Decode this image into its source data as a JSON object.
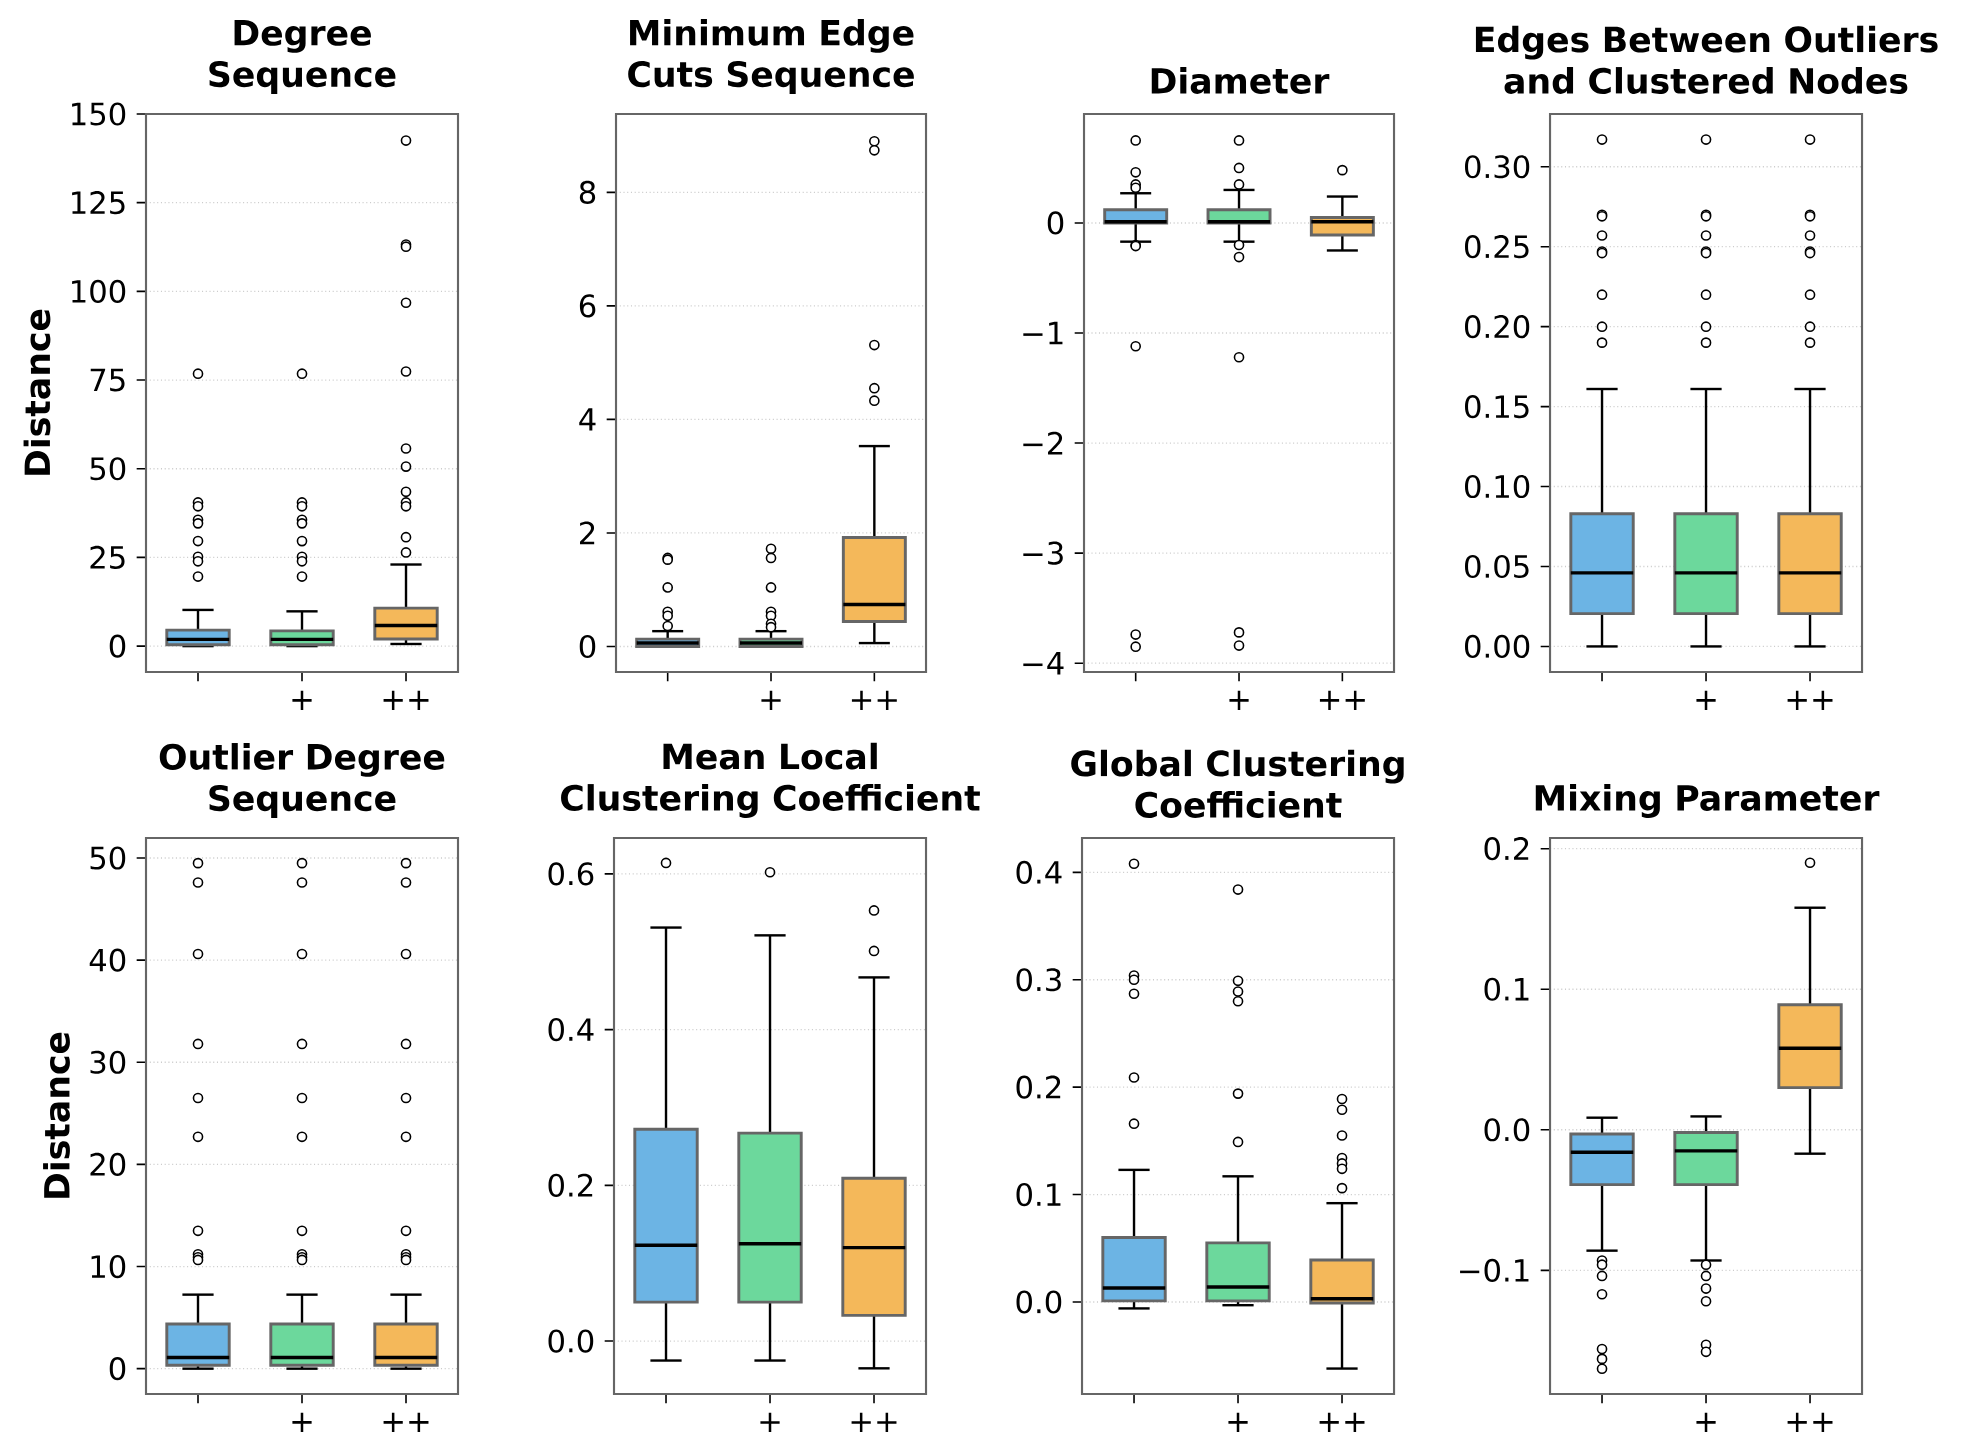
{
  "chart_data": [
    {
      "type": "box",
      "title": "Degree Sequence",
      "ylabel": "Distance",
      "categories": [
        null,
        "+",
        "++"
      ],
      "colors": [
        "#6cb4e4",
        "#6cd89c",
        "#f4b85a"
      ],
      "grid": "y",
      "ylim": [
        -7.3,
        150
      ],
      "yticks": [
        0,
        25,
        50,
        75,
        100,
        125,
        150
      ],
      "boxes": [
        {
          "low": 0,
          "q1": 0.4,
          "median": 1.9,
          "q3": 4.5,
          "high": 10.2,
          "outliers": [
            76.8,
            40.5,
            39.4,
            35.6,
            34.6,
            29.6,
            25.2,
            23.9,
            19.6
          ]
        },
        {
          "low": 0,
          "q1": 0.4,
          "median": 1.9,
          "q3": 4.3,
          "high": 9.8,
          "outliers": [
            76.8,
            40.5,
            39.4,
            35.6,
            34.6,
            29.6,
            25.2,
            23.9,
            19.6
          ]
        },
        {
          "low": 0.6,
          "q1": 2,
          "median": 5.8,
          "q3": 10.7,
          "high": 23,
          "outliers": [
            142.5,
            113.2,
            112.6,
            96.8,
            77.4,
            55.7,
            50.6,
            43.5,
            40.5,
            39.4,
            30.7,
            26.4
          ]
        }
      ]
    },
    {
      "type": "box",
      "title": "Minimum Edge Cuts Sequence",
      "categories": [
        null,
        "+",
        "++"
      ],
      "colors": [
        "#6cb4e4",
        "#6cd89c",
        "#f4b85a"
      ],
      "grid": "y",
      "ylim": [
        -0.45,
        9.38
      ],
      "yticks": [
        0,
        2,
        4,
        6,
        8
      ],
      "boxes": [
        {
          "low": 0,
          "q1": 0,
          "median": 0.06,
          "q3": 0.13,
          "high": 0.27,
          "outliers": [
            1.56,
            1.53,
            1.04,
            0.61,
            0.54,
            0.36
          ]
        },
        {
          "low": 0,
          "q1": 0,
          "median": 0.06,
          "q3": 0.13,
          "high": 0.27,
          "outliers": [
            1.72,
            1.56,
            1.04,
            0.61,
            0.54,
            0.4,
            0.34
          ]
        },
        {
          "low": 0.06,
          "q1": 0.44,
          "median": 0.74,
          "q3": 1.92,
          "high": 3.53,
          "outliers": [
            8.9,
            8.74,
            5.31,
            4.55,
            4.33
          ]
        }
      ]
    },
    {
      "type": "box",
      "title": "Diameter",
      "categories": [
        null,
        "+",
        "++"
      ],
      "colors": [
        "#6cb4e4",
        "#6cd89c",
        "#f4b85a"
      ],
      "grid": "y",
      "ylim": [
        -4.08,
        0.99
      ],
      "yticks": [
        {
          "value": -4,
          "label": "−4"
        },
        {
          "value": -3,
          "label": "−3"
        },
        {
          "value": -2,
          "label": "−2"
        },
        {
          "value": -1,
          "label": "−1"
        },
        0
      ],
      "boxes": [
        {
          "low": -0.17,
          "q1": 0,
          "median": 0.01,
          "q3": 0.12,
          "high": 0.27,
          "outliers": [
            0.75,
            0.46,
            0.35,
            0.32,
            -0.2,
            -0.21,
            -1.12,
            -3.74,
            -3.85
          ]
        },
        {
          "low": -0.17,
          "q1": 0,
          "median": 0.01,
          "q3": 0.12,
          "high": 0.3,
          "outliers": [
            0.75,
            0.5,
            0.35,
            -0.2,
            -0.31,
            -1.22,
            -3.72,
            -3.84
          ]
        },
        {
          "low": -0.25,
          "q1": -0.11,
          "median": 0.01,
          "q3": 0.05,
          "high": 0.24,
          "outliers": [
            0.48
          ]
        }
      ]
    },
    {
      "type": "box",
      "title": "Edges Between Outliers and Clustered Nodes",
      "categories": [
        null,
        "+",
        "++"
      ],
      "colors": [
        "#6cb4e4",
        "#6cd89c",
        "#f4b85a"
      ],
      "grid": "y",
      "ylim": [
        -0.016,
        0.333
      ],
      "yticks": [
        {
          "value": 0,
          "label": "0.00"
        },
        {
          "value": 0.05,
          "label": "0.05"
        },
        {
          "value": 0.1,
          "label": "0.10"
        },
        {
          "value": 0.15,
          "label": "0.15"
        },
        {
          "value": 0.2,
          "label": "0.20"
        },
        {
          "value": 0.25,
          "label": "0.25"
        },
        {
          "value": 0.3,
          "label": "0.30"
        }
      ],
      "boxes": [
        {
          "low": 0,
          "q1": 0.0205,
          "median": 0.046,
          "q3": 0.083,
          "high": 0.161,
          "outliers": [
            0.317,
            0.27,
            0.269,
            0.257,
            0.247,
            0.246,
            0.22,
            0.2,
            0.19
          ]
        },
        {
          "low": 0,
          "q1": 0.0205,
          "median": 0.046,
          "q3": 0.083,
          "high": 0.161,
          "outliers": [
            0.317,
            0.27,
            0.269,
            0.257,
            0.247,
            0.246,
            0.22,
            0.2,
            0.19
          ]
        },
        {
          "low": 0,
          "q1": 0.0205,
          "median": 0.046,
          "q3": 0.083,
          "high": 0.161,
          "outliers": [
            0.317,
            0.27,
            0.269,
            0.257,
            0.247,
            0.246,
            0.22,
            0.2,
            0.19
          ]
        }
      ]
    },
    {
      "type": "box",
      "title": "Outlier Degree Sequence",
      "ylabel": "Distance",
      "categories": [
        null,
        "+",
        "++"
      ],
      "colors": [
        "#6cb4e4",
        "#6cd89c",
        "#f4b85a"
      ],
      "grid": "y",
      "ylim": [
        -2.48,
        51.96
      ],
      "yticks": [
        0,
        10,
        20,
        30,
        40,
        50
      ],
      "boxes": [
        {
          "low": 0,
          "q1": 0.33,
          "median": 1.1,
          "q3": 4.38,
          "high": 7.25,
          "outliers": [
            49.5,
            47.6,
            40.6,
            31.8,
            26.5,
            22.7,
            13.5,
            11.2,
            10.9,
            10.65
          ]
        },
        {
          "low": 0,
          "q1": 0.33,
          "median": 1.1,
          "q3": 4.38,
          "high": 7.25,
          "outliers": [
            49.5,
            47.6,
            40.6,
            31.8,
            26.5,
            22.7,
            13.5,
            11.2,
            10.9,
            10.65
          ]
        },
        {
          "low": 0,
          "q1": 0.33,
          "median": 1.1,
          "q3": 4.38,
          "high": 7.25,
          "outliers": [
            49.5,
            47.6,
            40.6,
            31.8,
            26.5,
            22.7,
            13.5,
            11.2,
            10.9,
            10.65
          ]
        }
      ]
    },
    {
      "type": "box",
      "title": "Mean Local Clustering Coefficient",
      "categories": [
        null,
        "+",
        "++"
      ],
      "colors": [
        "#6cb4e4",
        "#6cd89c",
        "#f4b85a"
      ],
      "grid": "y",
      "ylim": [
        -0.068,
        0.646
      ],
      "yticks": [
        {
          "value": 0,
          "label": "0.0"
        },
        {
          "value": 0.2,
          "label": "0.2"
        },
        {
          "value": 0.4,
          "label": "0.4"
        },
        {
          "value": 0.6,
          "label": "0.6"
        }
      ],
      "boxes": [
        {
          "low": -0.025,
          "q1": 0.05,
          "median": 0.123,
          "q3": 0.272,
          "high": 0.531,
          "outliers": [
            0.614
          ]
        },
        {
          "low": -0.025,
          "q1": 0.05,
          "median": 0.125,
          "q3": 0.267,
          "high": 0.521,
          "outliers": [
            0.602
          ]
        },
        {
          "low": -0.035,
          "q1": 0.033,
          "median": 0.12,
          "q3": 0.209,
          "high": 0.467,
          "outliers": [
            0.553,
            0.501
          ]
        }
      ]
    },
    {
      "type": "box",
      "title": "Global Clustering Coefficient",
      "categories": [
        null,
        "+",
        "++"
      ],
      "colors": [
        "#6cb4e4",
        "#6cd89c",
        "#f4b85a"
      ],
      "grid": "y",
      "ylim": [
        -0.0857,
        0.432
      ],
      "yticks": [
        {
          "value": 0,
          "label": "0.0"
        },
        0.1,
        0.2,
        0.3,
        0.4
      ],
      "boxes": [
        {
          "low": -0.006,
          "q1": 0.001,
          "median": 0.013,
          "q3": 0.06,
          "high": 0.123,
          "outliers": [
            0.408,
            0.304,
            0.3,
            0.287,
            0.209,
            0.166
          ]
        },
        {
          "low": -0.003,
          "q1": 0.001,
          "median": 0.014,
          "q3": 0.055,
          "high": 0.117,
          "outliers": [
            0.384,
            0.299,
            0.289,
            0.28,
            0.194,
            0.149
          ]
        },
        {
          "low": -0.062,
          "q1": -0.001,
          "median": 0.003,
          "q3": 0.039,
          "high": 0.092,
          "outliers": [
            0.189,
            0.179,
            0.155,
            0.134,
            0.129,
            0.124,
            0.106
          ]
        }
      ]
    },
    {
      "type": "box",
      "title": "Mixing Parameter",
      "categories": [
        null,
        "+",
        "++"
      ],
      "colors": [
        "#6cb4e4",
        "#6cd89c",
        "#f4b85a"
      ],
      "grid": "y",
      "ylim": [
        -0.188,
        0.2076
      ],
      "yticks": [
        {
          "value": -0.1,
          "label": "−0.1"
        },
        {
          "value": 0,
          "label": "0.0"
        },
        0.1,
        0.2
      ],
      "boxes": [
        {
          "low": -0.086,
          "q1": -0.039,
          "median": -0.016,
          "q3": -0.003,
          "high": 0.0086,
          "outliers": [
            -0.093,
            -0.096,
            -0.104,
            -0.117,
            -0.156,
            -0.163,
            -0.17
          ]
        },
        {
          "low": -0.093,
          "q1": -0.039,
          "median": -0.015,
          "q3": -0.002,
          "high": 0.0095,
          "outliers": [
            -0.096,
            -0.104,
            -0.113,
            -0.122,
            -0.153,
            -0.158
          ]
        },
        {
          "low": -0.017,
          "q1": 0.03,
          "median": 0.058,
          "q3": 0.089,
          "high": 0.158,
          "outliers": [
            0.19
          ]
        }
      ]
    }
  ]
}
